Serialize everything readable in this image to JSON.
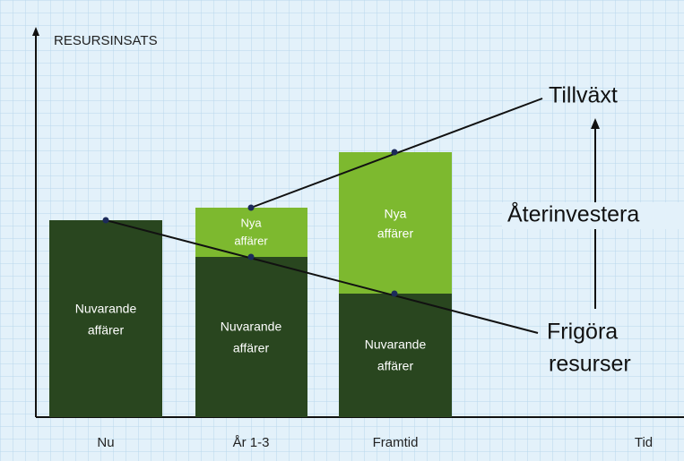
{
  "axis": {
    "y_label": "RESURSINSATS",
    "x_label": "Tid"
  },
  "columns": [
    {
      "label": "Nu",
      "segments": [
        {
          "lines": [
            "Nuvarande",
            "affärer"
          ]
        }
      ]
    },
    {
      "label": "År 1-3",
      "segments": [
        {
          "lines": [
            "Nuvarande",
            "affärer"
          ]
        },
        {
          "lines": [
            "Nya",
            "affärer"
          ]
        }
      ]
    },
    {
      "label": "Framtid",
      "segments": [
        {
          "lines": [
            "Nuvarande",
            "affärer"
          ]
        },
        {
          "lines": [
            "Nya",
            "affärer"
          ]
        }
      ]
    }
  ],
  "annotations": {
    "growth": "Tillväxt",
    "reinvest": "Återinvestera",
    "release": [
      "Frigöra",
      "resurser"
    ]
  }
}
